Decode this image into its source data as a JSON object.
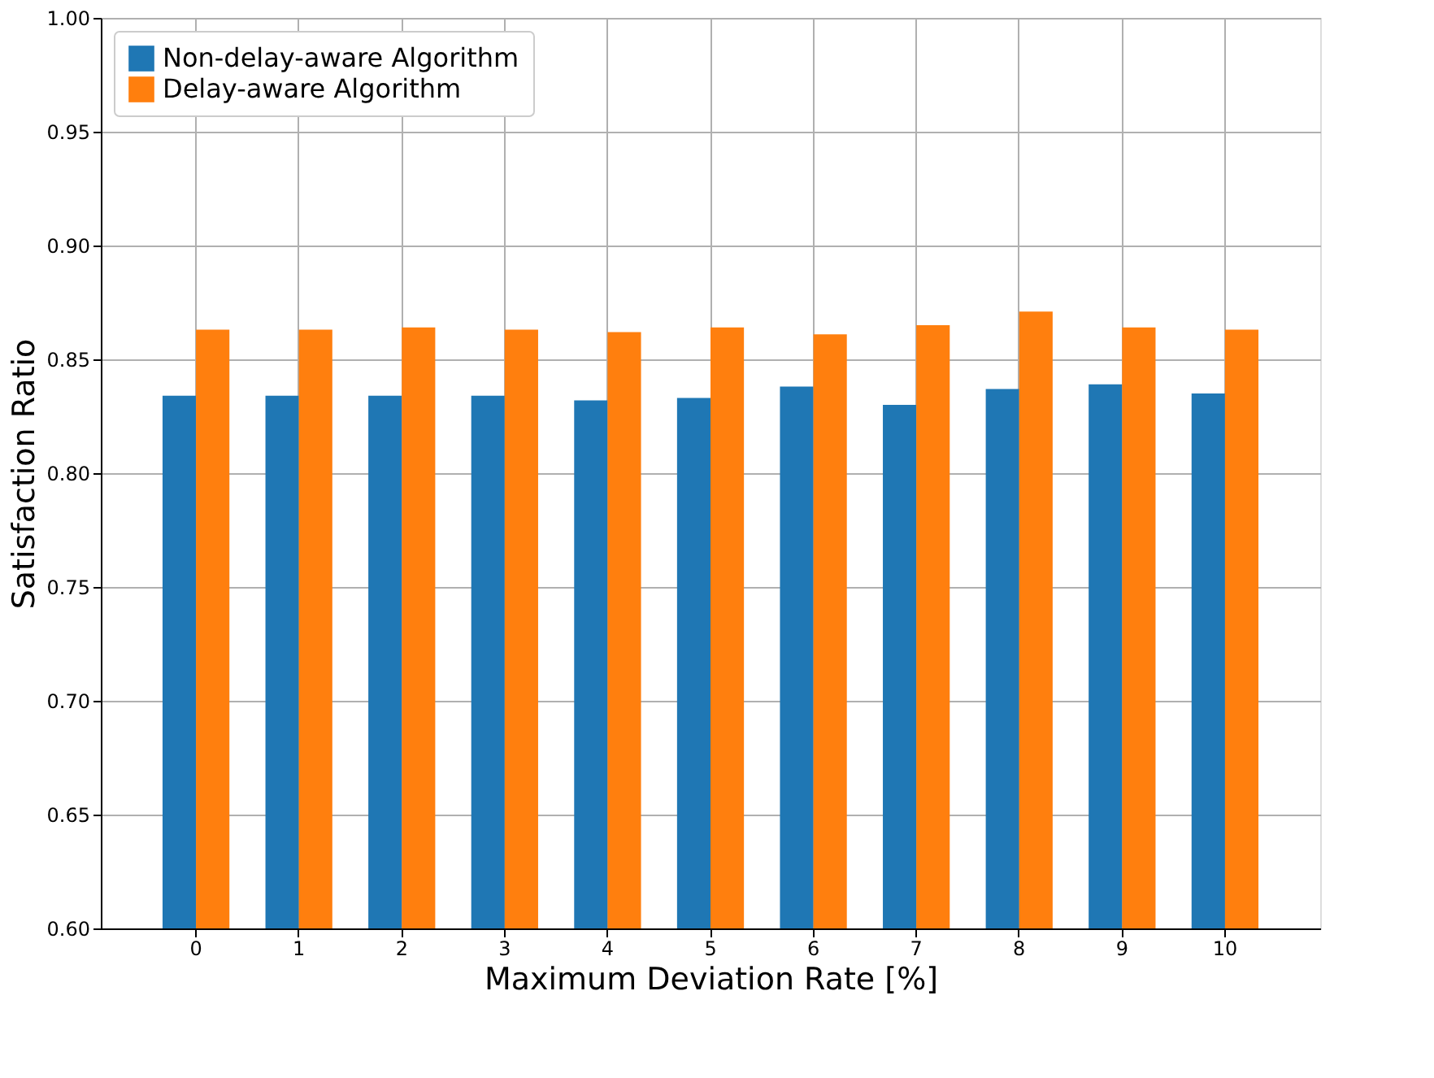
{
  "chart_data": {
    "type": "bar",
    "xlabel": "Maximum Deviation Rate [%]",
    "ylabel": "Satisfaction Ratio",
    "categories": [
      "0",
      "1",
      "2",
      "3",
      "4",
      "5",
      "6",
      "7",
      "8",
      "9",
      "10"
    ],
    "series": [
      {
        "name": "Non-delay-aware Algorithm",
        "color": "#1f77b4",
        "values": [
          0.834,
          0.834,
          0.834,
          0.834,
          0.832,
          0.833,
          0.838,
          0.83,
          0.837,
          0.839,
          0.835
        ]
      },
      {
        "name": "Delay-aware Algorithm",
        "color": "#ff7f0e",
        "values": [
          0.863,
          0.863,
          0.864,
          0.863,
          0.862,
          0.864,
          0.861,
          0.865,
          0.871,
          0.864,
          0.863
        ]
      }
    ],
    "ylim": [
      0.6,
      1.0
    ],
    "yticks": [
      {
        "value": 0.6,
        "label": "0.60"
      },
      {
        "value": 0.65,
        "label": "0.65"
      },
      {
        "value": 0.7,
        "label": "0.70"
      },
      {
        "value": 0.75,
        "label": "0.75"
      },
      {
        "value": 0.8,
        "label": "0.80"
      },
      {
        "value": 0.85,
        "label": "0.85"
      },
      {
        "value": 0.9,
        "label": "0.90"
      },
      {
        "value": 0.95,
        "label": "0.95"
      },
      {
        "value": 1.0,
        "label": "1.00"
      }
    ],
    "grid": true,
    "legend": "top left"
  }
}
